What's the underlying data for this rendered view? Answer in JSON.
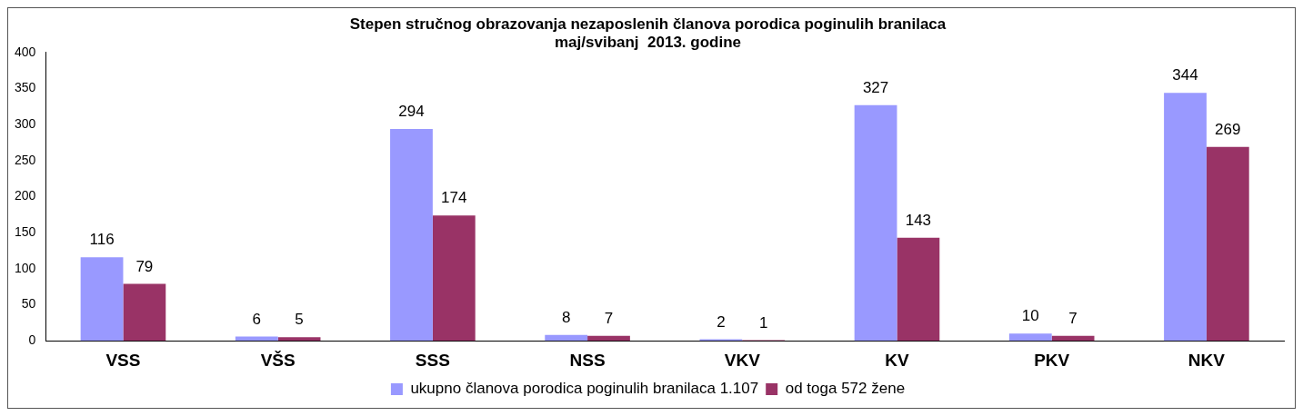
{
  "chart_data": {
    "type": "bar",
    "title": "Stepen stručnog obrazovanja nezaposlenih članova porodica poginulih branilaca\nmaj/svibanj  2013. godine",
    "categories": [
      "VSS",
      "VŠS",
      "SSS",
      "NSS",
      "VKV",
      "KV",
      "PKV",
      "NKV"
    ],
    "series": [
      {
        "name": "ukupno članova porodica poginulih branilaca 1.107",
        "color": "#9999ff",
        "values": [
          116,
          6,
          294,
          8,
          2,
          327,
          10,
          344
        ]
      },
      {
        "name": "od toga 572 žene",
        "color": "#993366",
        "values": [
          79,
          5,
          174,
          7,
          1,
          143,
          7,
          269
        ]
      }
    ],
    "ylim": [
      0,
      400
    ],
    "yticks": [
      0,
      50,
      100,
      150,
      200,
      250,
      300,
      350,
      400
    ],
    "grid": false,
    "legend": "bottom",
    "data_labels": true
  }
}
